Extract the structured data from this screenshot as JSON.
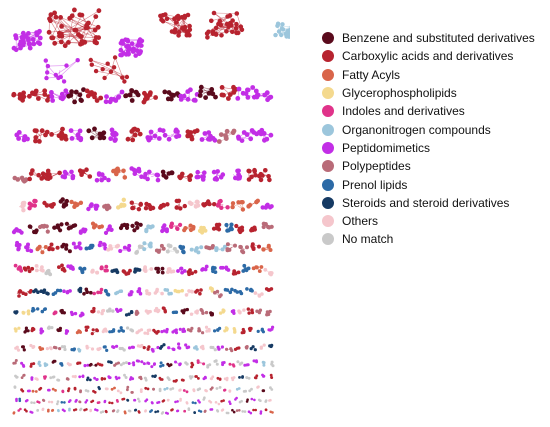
{
  "legend": {
    "items": [
      {
        "label": "Benzene and substituted derivatives",
        "color": "#5a0a1c"
      },
      {
        "label": "Carboxylic acids and derivatives",
        "color": "#b7232f"
      },
      {
        "label": "Fatty Acyls",
        "color": "#d9654a"
      },
      {
        "label": "Glycerophospholipids",
        "color": "#f4d98e"
      },
      {
        "label": "Indoles and derivatives",
        "color": "#e0338a"
      },
      {
        "label": "Organonitrogen compounds",
        "color": "#9cc6dc"
      },
      {
        "label": "Peptidomimetics",
        "color": "#c22ee6"
      },
      {
        "label": "Polypeptides",
        "color": "#b96b78"
      },
      {
        "label": "Prenol lipids",
        "color": "#2c6aa6"
      },
      {
        "label": "Steroids and steroid derivatives",
        "color": "#163a63"
      },
      {
        "label": "Others",
        "color": "#f5c6cc"
      },
      {
        "label": "No match",
        "color": "#c9c9c9"
      }
    ]
  }
}
